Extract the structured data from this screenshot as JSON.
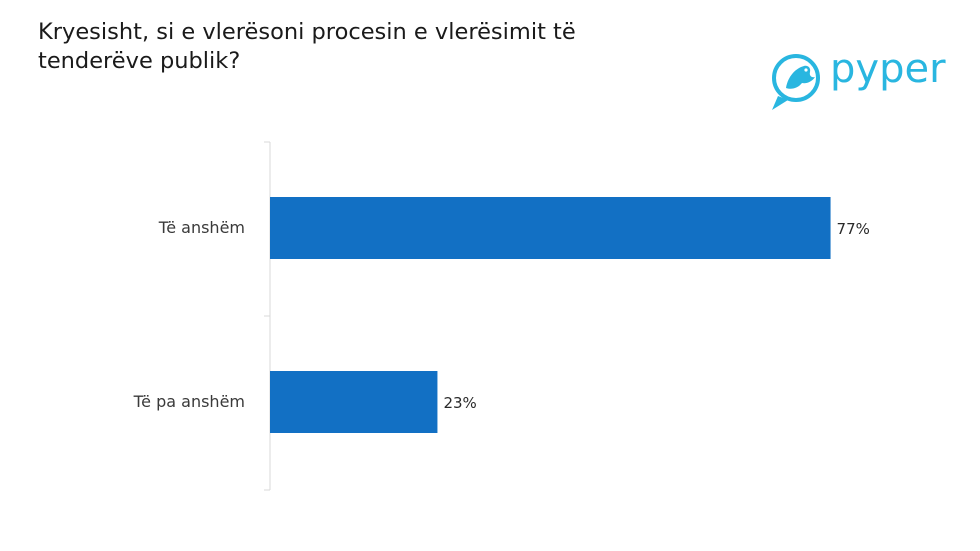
{
  "title": "Kryesisht, si e vlerësoni procesin e vlerësimit të tenderëve publik?",
  "logo": {
    "text": "pyper",
    "icon": "bird-icon",
    "color": "#29b6e0"
  },
  "chart_data": {
    "type": "bar",
    "orientation": "horizontal",
    "categories": [
      "Të anshëm",
      "Të pa anshëm"
    ],
    "values": [
      77,
      23
    ],
    "value_labels": [
      "77%",
      "23%"
    ],
    "unit": "%",
    "xlim": [
      0,
      100
    ],
    "bar_color": "#1270c4",
    "grid": false,
    "legend": "none"
  }
}
